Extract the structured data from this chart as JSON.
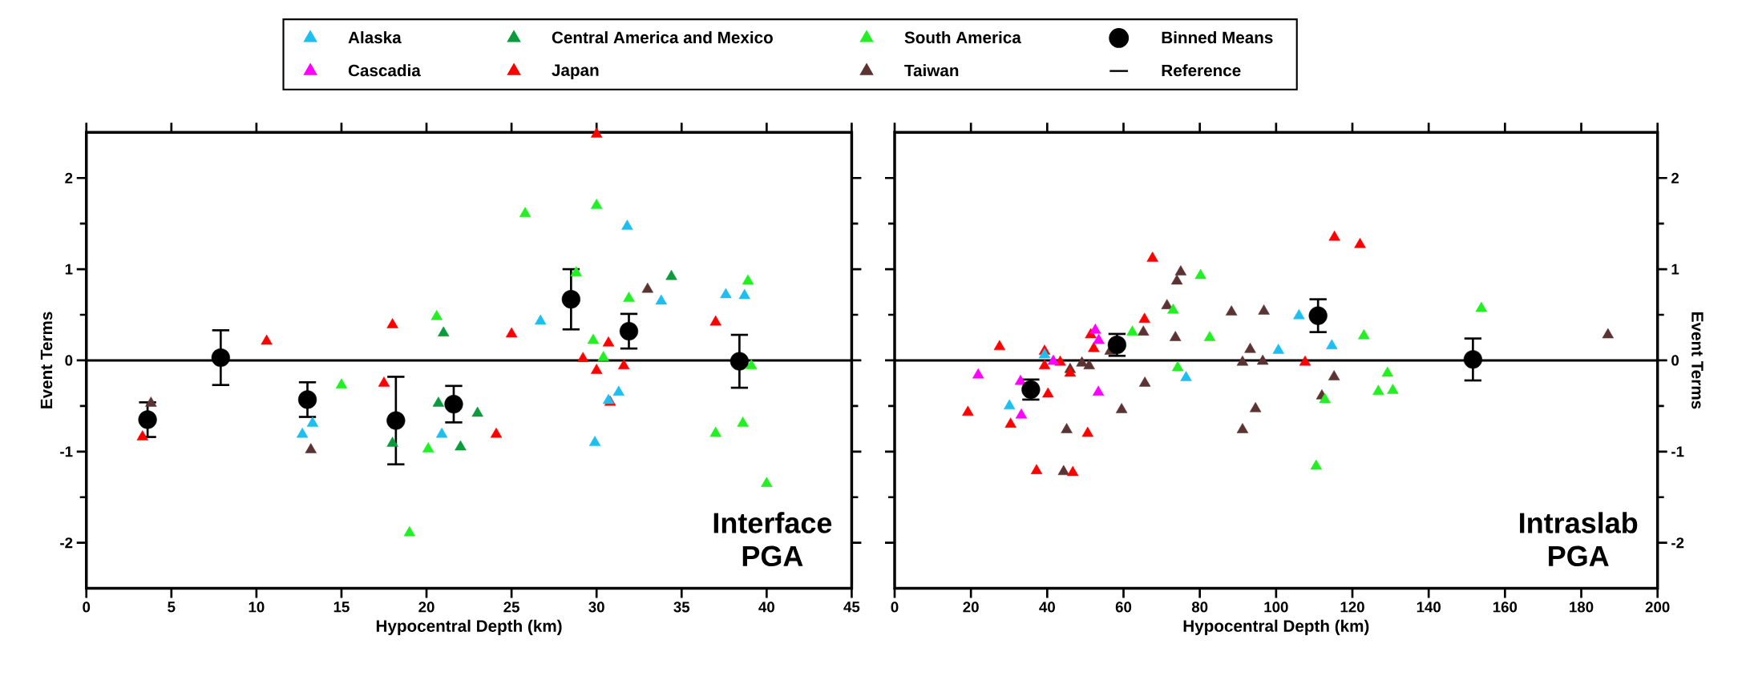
{
  "chart_data": [
    {
      "type": "scatter",
      "xlabel": "Hypocentral Depth (km)",
      "ylabel": "Event Terms",
      "annotations": [
        "Interface PGA"
      ],
      "xlim": [
        0,
        45
      ],
      "xticks": [
        0,
        5,
        10,
        15,
        20,
        25,
        30,
        35,
        40,
        45
      ],
      "ylim": [
        -2.5,
        2.5
      ],
      "yticks": [
        -2,
        -1,
        0,
        1,
        2
      ],
      "series": [
        {
          "color": "#1ebff0",
          "marker": "triangle",
          "x": [
            13.3,
            12.7,
            20.9,
            26.7,
            31.8,
            33.8,
            31.3,
            30.7,
            29.9,
            37.6,
            38.7
          ],
          "values": [
            -0.69,
            -0.81,
            -0.81,
            0.43,
            1.47,
            0.65,
            -0.35,
            -0.44,
            -0.9,
            0.72,
            0.71
          ]
        },
        {
          "color": "#0b9a3c",
          "marker": "triangle",
          "x": [
            18.0,
            21.0,
            20.7,
            22.0,
            23.0,
            34.4
          ],
          "values": [
            -0.91,
            0.3,
            -0.47,
            -0.95,
            -0.58,
            0.92
          ]
        },
        {
          "color": "#ff0000",
          "marker": "triangle",
          "x": [
            3.3,
            10.6,
            17.5,
            18.0,
            24.1,
            25.0,
            30.0,
            30.7,
            29.2,
            30.0,
            31.6,
            30.8,
            37.0
          ],
          "values": [
            -0.84,
            0.21,
            -0.25,
            0.39,
            -0.81,
            0.29,
            2.48,
            0.19,
            0.02,
            -0.11,
            -0.06,
            -0.46,
            0.42
          ]
        },
        {
          "color": "#22f022",
          "marker": "triangle",
          "x": [
            15.0,
            19.0,
            20.6,
            20.1,
            25.8,
            28.8,
            30.0,
            29.8,
            30.4,
            31.9,
            38.9,
            39.1,
            37.0,
            38.6,
            40.0
          ],
          "values": [
            -0.27,
            -1.89,
            0.48,
            -0.97,
            1.61,
            0.96,
            1.7,
            0.22,
            0.03,
            0.68,
            0.87,
            -0.06,
            -0.8,
            -0.69,
            -1.35
          ]
        },
        {
          "color": "#5c3333",
          "marker": "triangle",
          "x": [
            3.8,
            13.2,
            33.0
          ],
          "values": [
            -0.47,
            -0.98,
            0.78
          ]
        },
        {
          "color": "#000000",
          "marker": "circle",
          "x": [
            3.6,
            7.9,
            13.0,
            18.2,
            21.6,
            28.5,
            31.9,
            38.4
          ],
          "values": [
            -0.65,
            0.03,
            -0.43,
            -0.66,
            -0.48,
            0.67,
            0.32,
            -0.01
          ],
          "errors": [
            0.19,
            0.3,
            0.19,
            0.48,
            0.2,
            0.33,
            0.19,
            0.29
          ]
        },
        {
          "type": "line",
          "color": "#000000",
          "marker": "none",
          "x": [
            0,
            45
          ],
          "values": [
            0,
            0
          ]
        }
      ]
    },
    {
      "type": "scatter",
      "xlabel": "Hypocentral Depth (km)",
      "ylabel": "Event Terms",
      "annotations": [
        "Intraslab PGA"
      ],
      "legend": "top",
      "xlim": [
        0,
        200
      ],
      "xticks": [
        0,
        20,
        40,
        60,
        80,
        100,
        120,
        140,
        160,
        180,
        200
      ],
      "ylim": [
        -2.5,
        2.5
      ],
      "yticks": [
        -2,
        -1,
        0,
        1,
        2
      ],
      "series": [
        {
          "name": "Alaska",
          "color": "#1ebff0",
          "marker": "triangle",
          "x": [
            30.1,
            39.3,
            76.4,
            100.6,
            106.0,
            114.6
          ],
          "values": [
            -0.5,
            0.06,
            -0.19,
            0.11,
            0.49,
            0.16
          ]
        },
        {
          "name": "Cascadia",
          "color": "#ff00ff",
          "marker": "triangle",
          "x": [
            21.9,
            33.0,
            33.2,
            41.6,
            52.6,
            53.5,
            53.4
          ],
          "values": [
            -0.16,
            -0.23,
            -0.6,
            -0.01,
            0.33,
            0.22,
            -0.35
          ]
        },
        {
          "name": "Central America and Mexico",
          "color": "#0b9a3c",
          "marker": "triangle"
        },
        {
          "name": "Japan",
          "color": "#ff0000",
          "marker": "triangle",
          "x": [
            19.2,
            27.5,
            30.4,
            37.2,
            39.3,
            39.3,
            40.2,
            43.4,
            46.0,
            46.7,
            50.6,
            51.4,
            52.2,
            65.5,
            67.6,
            107.6,
            115.3,
            122.0
          ],
          "values": [
            -0.57,
            0.15,
            -0.7,
            -1.21,
            0.1,
            -0.06,
            -0.37,
            -0.02,
            -0.14,
            -1.23,
            -0.8,
            0.28,
            0.13,
            0.45,
            1.12,
            -0.02,
            1.35,
            1.27
          ]
        },
        {
          "name": "South America",
          "color": "#22f022",
          "marker": "triangle",
          "x": [
            62.3,
            73.0,
            74.2,
            80.2,
            82.6,
            112.8,
            110.5,
            123.0,
            129.2,
            126.8,
            130.6,
            153.8
          ],
          "values": [
            0.31,
            0.55,
            -0.08,
            0.93,
            0.25,
            -0.43,
            -1.16,
            0.27,
            -0.14,
            -0.34,
            -0.33,
            0.57
          ]
        },
        {
          "name": "Taiwan",
          "color": "#5c3333",
          "marker": "triangle",
          "x": [
            44.3,
            45.1,
            46.0,
            49.1,
            51.0,
            56.5,
            59.5,
            65.2,
            65.6,
            71.4,
            73.6,
            75.0,
            74.0,
            88.3,
            93.2,
            91.2,
            96.5,
            94.6,
            91.2,
            96.8,
            115.2,
            112.0,
            187.0
          ],
          "values": [
            -1.22,
            -0.76,
            -0.1,
            -0.03,
            -0.06,
            0.1,
            -0.54,
            0.31,
            -0.25,
            0.6,
            0.25,
            0.97,
            0.87,
            0.53,
            0.12,
            -0.02,
            -0.01,
            -0.53,
            -0.76,
            0.54,
            -0.18,
            -0.39,
            0.28
          ]
        },
        {
          "name": "Binned Means",
          "color": "#000000",
          "marker": "circle",
          "x": [
            35.7,
            58.3,
            111.0,
            151.6
          ],
          "values": [
            -0.32,
            0.17,
            0.49,
            0.01
          ],
          "errors": [
            0.11,
            0.12,
            0.18,
            0.23
          ]
        },
        {
          "name": "Reference",
          "type": "line",
          "color": "#000000",
          "marker": "none",
          "x": [
            0,
            200
          ],
          "values": [
            0,
            0
          ]
        }
      ]
    }
  ]
}
